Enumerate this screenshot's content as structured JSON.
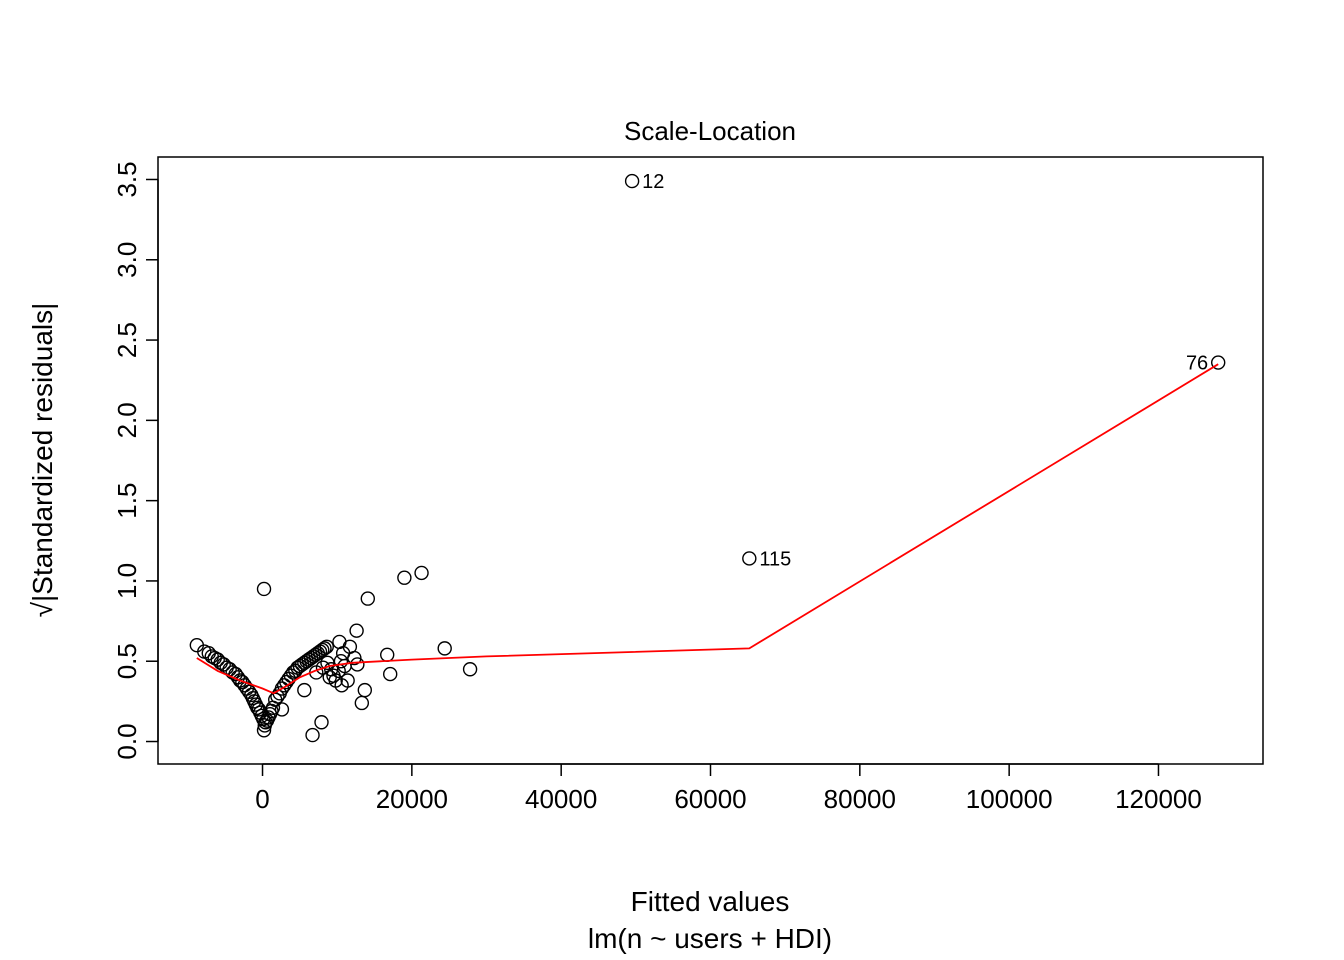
{
  "chart_data": {
    "type": "scatter",
    "title": "Scale-Location",
    "xlabel": "Fitted values",
    "xsublabel": "lm(n ~ users + HDI)",
    "ylabel_prefix": "√",
    "ylabel": "|Standardized residuals|",
    "xlim": [
      -14000,
      134000
    ],
    "ylim": [
      -0.14,
      3.64
    ],
    "xticks": [
      0,
      20000,
      40000,
      60000,
      80000,
      100000,
      120000
    ],
    "xtick_labels": [
      "0",
      "20000",
      "40000",
      "60000",
      "80000",
      "100000",
      "120000"
    ],
    "yticks": [
      0.0,
      0.5,
      1.0,
      1.5,
      2.0,
      2.5,
      3.0,
      3.5
    ],
    "ytick_labels": [
      "0.0",
      "0.5",
      "1.0",
      "1.5",
      "2.0",
      "2.5",
      "3.0",
      "3.5"
    ],
    "grid": false,
    "colors": {
      "points": "#000000",
      "smooth": "#ff0000",
      "axis": "#000000"
    },
    "points": [
      [
        -8800,
        0.6
      ],
      [
        -7800,
        0.56
      ],
      [
        -7200,
        0.55
      ],
      [
        -6800,
        0.53
      ],
      [
        -6400,
        0.52
      ],
      [
        -6000,
        0.51
      ],
      [
        -5600,
        0.49
      ],
      [
        -5200,
        0.48
      ],
      [
        -4800,
        0.46
      ],
      [
        -4400,
        0.45
      ],
      [
        -4000,
        0.43
      ],
      [
        -3600,
        0.42
      ],
      [
        -3300,
        0.4
      ],
      [
        -3000,
        0.38
      ],
      [
        -2700,
        0.37
      ],
      [
        -2400,
        0.35
      ],
      [
        -2100,
        0.33
      ],
      [
        -1800,
        0.31
      ],
      [
        -1500,
        0.29
      ],
      [
        -1300,
        0.27
      ],
      [
        -1100,
        0.25
      ],
      [
        -900,
        0.23
      ],
      [
        -700,
        0.21
      ],
      [
        -500,
        0.2
      ],
      [
        -300,
        0.18
      ],
      [
        -100,
        0.16
      ],
      [
        100,
        0.14
      ],
      [
        200,
        0.07
      ],
      [
        300,
        0.1
      ],
      [
        400,
        0.12
      ],
      [
        600,
        0.13
      ],
      [
        800,
        0.15
      ],
      [
        1000,
        0.17
      ],
      [
        1200,
        0.19
      ],
      [
        1400,
        0.21
      ],
      [
        200,
        0.95
      ],
      [
        1700,
        0.26
      ],
      [
        2000,
        0.28
      ],
      [
        2300,
        0.3
      ],
      [
        2600,
        0.33
      ],
      [
        2900,
        0.35
      ],
      [
        3200,
        0.37
      ],
      [
        3500,
        0.39
      ],
      [
        3800,
        0.41
      ],
      [
        4100,
        0.43
      ],
      [
        4400,
        0.44
      ],
      [
        4700,
        0.46
      ],
      [
        5000,
        0.47
      ],
      [
        5300,
        0.48
      ],
      [
        5600,
        0.49
      ],
      [
        5900,
        0.5
      ],
      [
        6200,
        0.51
      ],
      [
        6500,
        0.52
      ],
      [
        6800,
        0.53
      ],
      [
        7100,
        0.54
      ],
      [
        7400,
        0.55
      ],
      [
        7700,
        0.56
      ],
      [
        8000,
        0.57
      ],
      [
        8300,
        0.58
      ],
      [
        8600,
        0.59
      ],
      [
        2600,
        0.2
      ],
      [
        5600,
        0.32
      ],
      [
        6700,
        0.04
      ],
      [
        7900,
        0.12
      ],
      [
        7200,
        0.43
      ],
      [
        8100,
        0.46
      ],
      [
        8700,
        0.49
      ],
      [
        9200,
        0.45
      ],
      [
        9500,
        0.41
      ],
      [
        9800,
        0.38
      ],
      [
        9000,
        0.4
      ],
      [
        10200,
        0.44
      ],
      [
        10500,
        0.5
      ],
      [
        10300,
        0.62
      ],
      [
        10800,
        0.55
      ],
      [
        11000,
        0.47
      ],
      [
        10600,
        0.35
      ],
      [
        11400,
        0.38
      ],
      [
        11700,
        0.59
      ],
      [
        12300,
        0.52
      ],
      [
        12600,
        0.69
      ],
      [
        12700,
        0.48
      ],
      [
        13300,
        0.24
      ],
      [
        13700,
        0.32
      ],
      [
        14100,
        0.89
      ],
      [
        16700,
        0.54
      ],
      [
        17100,
        0.42
      ],
      [
        19000,
        1.02
      ],
      [
        21300,
        1.05
      ],
      [
        24400,
        0.58
      ],
      [
        27800,
        0.45
      ],
      [
        49500,
        3.49
      ],
      [
        65200,
        1.14
      ],
      [
        128000,
        2.36
      ]
    ],
    "labeled_points": [
      {
        "label": "12",
        "x": 49500,
        "y": 3.49,
        "side": "right"
      },
      {
        "label": "115",
        "x": 65200,
        "y": 1.14,
        "side": "right"
      },
      {
        "label": "76",
        "x": 128000,
        "y": 2.36,
        "side": "left"
      }
    ],
    "smooth_line": [
      [
        -8800,
        0.52
      ],
      [
        -6000,
        0.44
      ],
      [
        -3000,
        0.38
      ],
      [
        0,
        0.33
      ],
      [
        1500,
        0.3
      ],
      [
        3000,
        0.34
      ],
      [
        5000,
        0.4
      ],
      [
        7000,
        0.44
      ],
      [
        9000,
        0.47
      ],
      [
        12000,
        0.49
      ],
      [
        20000,
        0.51
      ],
      [
        30000,
        0.53
      ],
      [
        65200,
        0.58
      ],
      [
        128000,
        2.35
      ]
    ]
  }
}
